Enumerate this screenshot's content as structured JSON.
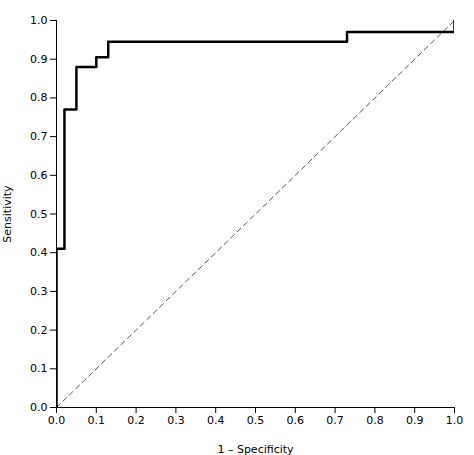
{
  "chart_data": {
    "type": "line",
    "xlabel": "1 – Specificity",
    "ylabel": "Sensitivity",
    "series": [
      {
        "x": [
          0.0,
          1.0
        ],
        "values": [
          0.0,
          1.0
        ],
        "color": "#555555",
        "line_style": "dashed"
      },
      {
        "x": [
          0.0,
          0.0,
          0.02,
          0.02,
          0.05,
          0.05,
          0.1,
          0.1,
          0.13,
          0.13,
          0.73,
          0.73,
          1.0,
          1.0
        ],
        "values": [
          0.0,
          0.41,
          0.41,
          0.77,
          0.77,
          0.88,
          0.88,
          0.905,
          0.905,
          0.945,
          0.945,
          0.97,
          0.97,
          1.0
        ],
        "color": "#000000",
        "line_style": "solid"
      }
    ],
    "xlim": [
      0.0,
      1.0
    ],
    "ylim": [
      0.0,
      1.0
    ],
    "xticks": [
      {
        "value": 0.0,
        "label": "0.0"
      },
      0.1,
      0.2,
      0.3,
      0.4,
      0.5,
      0.6,
      0.7,
      0.8,
      0.9,
      {
        "value": 1.0,
        "label": "1.0"
      }
    ],
    "yticks": [
      {
        "value": 0.0,
        "label": "0.0"
      },
      0.1,
      0.2,
      0.3,
      0.4,
      0.5,
      0.6,
      0.7,
      0.8,
      0.9,
      {
        "value": 1.0,
        "label": "1.0"
      }
    ],
    "grid": false
  }
}
